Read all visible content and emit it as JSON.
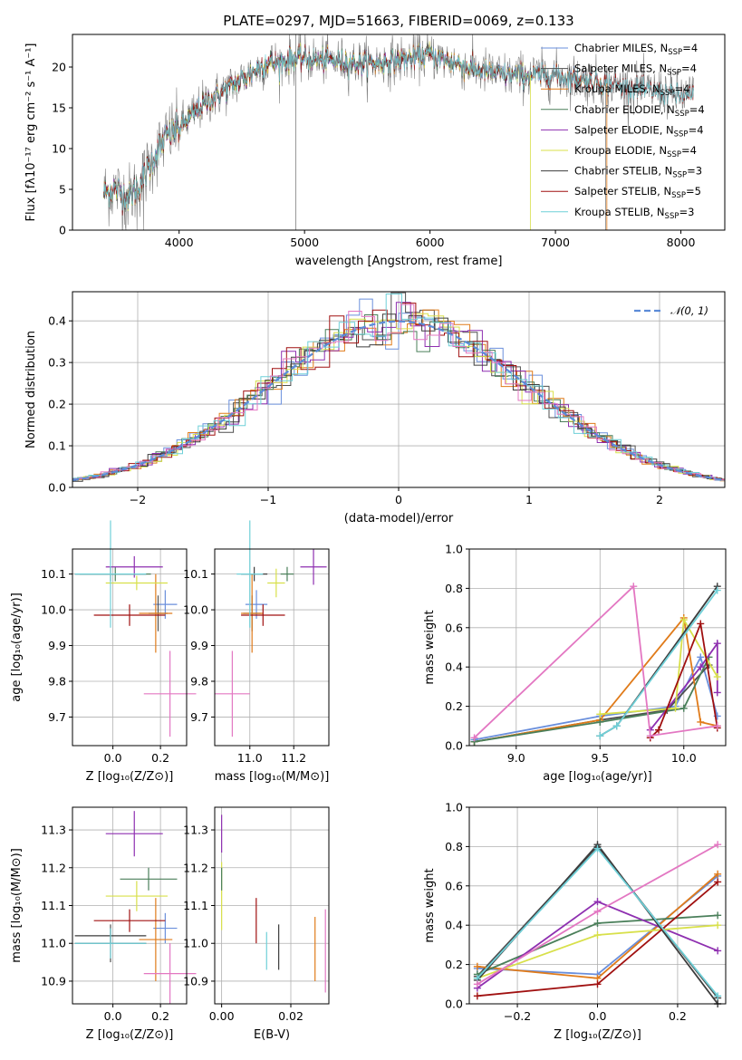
{
  "colors": {
    "Chabrier MILES": "#6a8fdc",
    "Salpeter MILES": "#4f4f4f",
    "Kroupa MILES": "#e07b1a",
    "Chabrier ELODIE": "#4a7f5a",
    "Salpeter ELODIE": "#8e2fb0",
    "Kroupa ELODIE": "#d8e04a",
    "Chabrier STELIB": "#3c3c3c",
    "Salpeter STELIB": "#a01010",
    "Kroupa STELIB": "#6fd0d8",
    "extra": "#e377c2",
    "spectrum": "#808080",
    "normal": "#5b8bd8"
  },
  "chart_data": [
    {
      "id": "spectrum",
      "type": "line",
      "title": "PLATE=0297, MJD=51663, FIBERID=0069, z=0.133",
      "xlabel": "wavelength [Angstrom, rest frame]",
      "ylabel": "Flux [fλ10⁻¹⁷ erg cm⁻² s⁻¹ A⁻¹]",
      "xlim": [
        3150,
        8350
      ],
      "ylim": [
        0,
        24
      ],
      "xticks": [
        "4000",
        "5000",
        "6000",
        "7000",
        "8000"
      ],
      "yticks": [
        "0",
        "5",
        "10",
        "15",
        "20"
      ],
      "continuum": {
        "x": [
          3400,
          3500,
          3600,
          3700,
          3800,
          3900,
          4000,
          4100,
          4200,
          4300,
          4400,
          4500,
          4600,
          4700,
          4800,
          4900,
          5000,
          5200,
          5400,
          5600,
          5800,
          6000,
          6200,
          6400,
          6600,
          6800,
          7000,
          7200,
          7400,
          7600,
          7800,
          8000,
          8100
        ],
        "y": [
          4.6,
          5.0,
          4.0,
          6.0,
          9.0,
          11.5,
          12.5,
          14.0,
          15.5,
          16.5,
          17.5,
          18.5,
          19.5,
          20.5,
          20.5,
          21.0,
          21.0,
          20.8,
          20.5,
          20.5,
          21.0,
          21.5,
          20.5,
          19.5,
          19.0,
          19.0,
          19.0,
          18.5,
          18.0,
          17.5,
          17.0,
          16.5,
          16.5
        ]
      },
      "series_names": [
        "Chabrier MILES",
        "Salpeter MILES",
        "Kroupa MILES",
        "Chabrier ELODIE",
        "Salpeter ELODIE",
        "Kroupa ELODIE",
        "Chabrier STELIB",
        "Salpeter STELIB",
        "Kroupa STELIB"
      ],
      "legend_labels": [
        {
          "name": "Chabrier MILES",
          "n": "4"
        },
        {
          "name": "Salpeter MILES",
          "n": "4"
        },
        {
          "name": "Kroupa MILES",
          "n": "4"
        },
        {
          "name": "Chabrier ELODIE",
          "n": "4"
        },
        {
          "name": "Salpeter ELODIE",
          "n": "4"
        },
        {
          "name": "Kroupa ELODIE",
          "n": "4"
        },
        {
          "name": "Chabrier STELIB",
          "n": "3"
        },
        {
          "name": "Salpeter STELIB",
          "n": "5"
        },
        {
          "name": "Kroupa STELIB",
          "n": "3"
        }
      ],
      "legend_loc": "upper right"
    },
    {
      "id": "residuals",
      "type": "histogram",
      "xlabel": "(data-model)/error",
      "ylabel": "Normed distribution",
      "xlim": [
        -2.5,
        2.5
      ],
      "ylim": [
        0,
        0.47
      ],
      "xticks": [
        "−2",
        "−1",
        "0",
        "1",
        "2"
      ],
      "yticks": [
        "0.0",
        "0.1",
        "0.2",
        "0.3",
        "0.4"
      ],
      "legend": "𝒩(0, 1)",
      "legend_loc": "upper right",
      "grid": true
    },
    {
      "id": "age_vs_Z",
      "type": "errorbar",
      "xlabel": "Z [log₁₀(Z/Z⊙)]",
      "ylabel": "age  [log₁₀(age/yr)]",
      "xlim": [
        -0.17,
        0.31
      ],
      "ylim": [
        9.62,
        10.17
      ],
      "xticks": [
        "0.0",
        "0.2"
      ],
      "yticks": [
        "9.7",
        "9.8",
        "9.9",
        "10.0",
        "10.1"
      ],
      "grid": true,
      "points": [
        {
          "s": "Chabrier MILES",
          "x": 0.22,
          "y": 10.015,
          "ex": 0.05,
          "ey": 0.04
        },
        {
          "s": "Salpeter MILES",
          "x": 0.19,
          "y": 9.99,
          "ex": 0.04,
          "ey": 0.05
        },
        {
          "s": "Kroupa MILES",
          "x": 0.18,
          "y": 9.99,
          "ex": 0.07,
          "ey": 0.11
        },
        {
          "s": "Chabrier ELODIE",
          "x": 0.01,
          "y": 10.1,
          "ex": 0.15,
          "ey": 0.02
        },
        {
          "s": "Salpeter ELODIE",
          "x": 0.09,
          "y": 10.12,
          "ex": 0.12,
          "ey": 0.03
        },
        {
          "s": "Kroupa ELODIE",
          "x": 0.1,
          "y": 10.075,
          "ex": 0.13,
          "ey": 0.02
        },
        {
          "s": "Chabrier STELIB",
          "x": -0.01,
          "y": 10.1,
          "ex": 0.15,
          "ey": 0.02
        },
        {
          "s": "Salpeter STELIB",
          "x": 0.07,
          "y": 9.985,
          "ex": 0.15,
          "ey": 0.03
        },
        {
          "s": "Kroupa STELIB",
          "x": -0.01,
          "y": 10.1,
          "ex": 0.15,
          "ey": 0.15
        },
        {
          "s": "extra",
          "x": 0.24,
          "y": 9.765,
          "ex": 0.11,
          "ey": 0.12
        }
      ]
    },
    {
      "id": "age_vs_mass",
      "type": "errorbar",
      "xlabel": "mass [log₁₀(M/M⊙)]",
      "ylabel": "",
      "xlim": [
        10.84,
        11.36
      ],
      "ylim": [
        9.62,
        10.17
      ],
      "xticks": [
        "11.0",
        "11.2"
      ],
      "yticks": [
        "9.7",
        "9.8",
        "9.9",
        "10.0",
        "10.1"
      ],
      "grid": true,
      "points": [
        {
          "s": "Chabrier MILES",
          "x": 11.03,
          "y": 10.015,
          "ex": 0.05,
          "ey": 0.04
        },
        {
          "s": "Salpeter MILES",
          "x": 11.01,
          "y": 9.99,
          "ex": 0.04,
          "ey": 0.05
        },
        {
          "s": "Kroupa MILES",
          "x": 11.01,
          "y": 9.99,
          "ex": 0.05,
          "ey": 0.11
        },
        {
          "s": "Chabrier ELODIE",
          "x": 11.17,
          "y": 10.1,
          "ex": 0.03,
          "ey": 0.02
        },
        {
          "s": "Salpeter ELODIE",
          "x": 11.29,
          "y": 10.12,
          "ex": 0.06,
          "ey": 0.05
        },
        {
          "s": "Kroupa ELODIE",
          "x": 11.12,
          "y": 10.075,
          "ex": 0.04,
          "ey": 0.04
        },
        {
          "s": "Chabrier STELIB",
          "x": 11.02,
          "y": 10.1,
          "ex": 0.06,
          "ey": 0.02
        },
        {
          "s": "Salpeter STELIB",
          "x": 11.06,
          "y": 9.985,
          "ex": 0.1,
          "ey": 0.03
        },
        {
          "s": "Kroupa STELIB",
          "x": 11.0,
          "y": 10.1,
          "ex": 0.06,
          "ey": 0.15
        },
        {
          "s": "extra",
          "x": 10.92,
          "y": 9.765,
          "ex": 0.08,
          "ey": 0.12
        }
      ]
    },
    {
      "id": "weight_vs_age",
      "type": "line",
      "xlabel": "age  [log₁₀(age/yr)]",
      "ylabel": "mass weight",
      "xlim": [
        8.72,
        10.25
      ],
      "ylim": [
        0,
        1.0
      ],
      "xticks": [
        "9.0",
        "9.5",
        "10.0"
      ],
      "yticks": [
        "0.0",
        "0.2",
        "0.4",
        "0.6",
        "0.8",
        "1.0"
      ],
      "grid": true,
      "series": [
        {
          "s": "Chabrier MILES",
          "x": [
            8.75,
            9.5,
            9.95,
            10.1,
            10.2
          ],
          "y": [
            0.03,
            0.15,
            0.2,
            0.45,
            0.15
          ]
        },
        {
          "s": "Salpeter MILES",
          "x": [
            8.75,
            9.5,
            9.9,
            10.15
          ],
          "y": [
            0.02,
            0.13,
            0.18,
            0.41
          ]
        },
        {
          "s": "Kroupa MILES",
          "x": [
            8.75,
            9.5,
            10.0,
            10.1,
            10.2
          ],
          "y": [
            0.02,
            0.13,
            0.65,
            0.12,
            0.1
          ]
        },
        {
          "s": "Chabrier ELODIE",
          "x": [
            8.75,
            9.5,
            10.0,
            10.15
          ],
          "y": [
            0.02,
            0.12,
            0.19,
            0.45
          ]
        },
        {
          "s": "Salpeter ELODIE",
          "x": [
            9.8,
            10.1,
            10.2,
            10.2
          ],
          "y": [
            0.08,
            0.4,
            0.52,
            0.27
          ]
        },
        {
          "s": "Kroupa ELODIE",
          "x": [
            9.5,
            9.95,
            10.0,
            10.2
          ],
          "y": [
            0.16,
            0.19,
            0.64,
            0.35
          ]
        },
        {
          "s": "Chabrier STELIB",
          "x": [
            9.5,
            9.6,
            10.2
          ],
          "y": [
            0.05,
            0.1,
            0.81
          ]
        },
        {
          "s": "Salpeter STELIB",
          "x": [
            9.8,
            9.85,
            10.1,
            10.2
          ],
          "y": [
            0.04,
            0.08,
            0.62,
            0.09
          ]
        },
        {
          "s": "Kroupa STELIB",
          "x": [
            9.5,
            9.6,
            10.2
          ],
          "y": [
            0.05,
            0.1,
            0.79
          ]
        },
        {
          "s": "extra",
          "x": [
            8.75,
            9.7,
            9.8,
            10.2
          ],
          "y": [
            0.04,
            0.81,
            0.05,
            0.1
          ]
        }
      ]
    },
    {
      "id": "mass_vs_Z",
      "type": "errorbar",
      "xlabel": "Z [log₁₀(Z/Z⊙)]",
      "ylabel": "mass [log₁₀(M/M⊙)]",
      "xlim": [
        -0.17,
        0.31
      ],
      "ylim": [
        10.84,
        11.36
      ],
      "xticks": [
        "0.0",
        "0.2"
      ],
      "yticks": [
        "10.9",
        "11.0",
        "11.1",
        "11.2",
        "11.3"
      ],
      "grid": true,
      "points": [
        {
          "s": "Chabrier MILES",
          "x": 0.22,
          "y": 11.04,
          "ex": 0.05,
          "ey": 0.04
        },
        {
          "s": "Salpeter MILES",
          "x": -0.01,
          "y": 11.0,
          "ex": 0.15,
          "ey": 0.05
        },
        {
          "s": "Kroupa MILES",
          "x": 0.18,
          "y": 11.01,
          "ex": 0.07,
          "ey": 0.11
        },
        {
          "s": "Chabrier ELODIE",
          "x": 0.15,
          "y": 11.17,
          "ex": 0.12,
          "ey": 0.03
        },
        {
          "s": "Salpeter ELODIE",
          "x": 0.09,
          "y": 11.29,
          "ex": 0.12,
          "ey": 0.06
        },
        {
          "s": "Kroupa ELODIE",
          "x": 0.1,
          "y": 11.125,
          "ex": 0.13,
          "ey": 0.04
        },
        {
          "s": "Chabrier STELIB",
          "x": -0.01,
          "y": 11.02,
          "ex": 0.15,
          "ey": 0.02
        },
        {
          "s": "Salpeter STELIB",
          "x": 0.07,
          "y": 11.06,
          "ex": 0.15,
          "ey": 0.03
        },
        {
          "s": "Kroupa STELIB",
          "x": -0.01,
          "y": 11.0,
          "ex": 0.15,
          "ey": 0.04
        },
        {
          "s": "extra",
          "x": 0.24,
          "y": 10.92,
          "ex": 0.11,
          "ey": 0.08
        }
      ]
    },
    {
      "id": "mass_vs_ebv",
      "type": "errorbar",
      "xlabel": "E(B-V)",
      "ylabel": "",
      "xlim": [
        -0.002,
        0.031
      ],
      "ylim": [
        10.84,
        11.36
      ],
      "xticks": [
        "0.00",
        "0.02"
      ],
      "yticks": [
        "10.9",
        "11.0",
        "11.1",
        "11.2",
        "11.3"
      ],
      "grid": true,
      "points": [
        {
          "s": "Salpeter ELODIE",
          "x": 0.0,
          "y": 11.29,
          "ex": 0,
          "ey": 0.05
        },
        {
          "s": "Kroupa ELODIE",
          "x": 0.0,
          "y": 11.125,
          "ex": 0,
          "ey": 0.09
        },
        {
          "s": "Chabrier ELODIE",
          "x": 0.0,
          "y": 11.17,
          "ex": 0,
          "ey": 0.03
        },
        {
          "s": "Salpeter STELIB",
          "x": 0.01,
          "y": 11.06,
          "ex": 0,
          "ey": 0.06
        },
        {
          "s": "Kroupa STELIB",
          "x": 0.013,
          "y": 10.98,
          "ex": 0,
          "ey": 0.05
        },
        {
          "s": "Chabrier STELIB",
          "x": 0.0165,
          "y": 10.99,
          "ex": 0,
          "ey": 0.06
        },
        {
          "s": "Kroupa MILES",
          "x": 0.027,
          "y": 10.985,
          "ex": 0,
          "ey": 0.085
        },
        {
          "s": "extra",
          "x": 0.03,
          "y": 10.98,
          "ex": 0,
          "ey": 0.11
        }
      ]
    },
    {
      "id": "weight_vs_Z",
      "type": "line",
      "xlabel": "Z [log₁₀(Z/Z⊙)]",
      "ylabel": "mass weight",
      "xlim": [
        -0.32,
        0.32
      ],
      "ylim": [
        0,
        1.0
      ],
      "xticks": [
        "−0.2",
        "0.0",
        "0.2"
      ],
      "yticks": [
        "0.0",
        "0.2",
        "0.4",
        "0.6",
        "0.8",
        "1.0"
      ],
      "grid": true,
      "series": [
        {
          "s": "Chabrier MILES",
          "x": [
            -0.3,
            0.0,
            0.3
          ],
          "y": [
            0.18,
            0.15,
            0.65
          ]
        },
        {
          "s": "Salpeter MILES",
          "x": [
            -0.3,
            0.0,
            0.3
          ],
          "y": [
            0.14,
            0.8,
            0.03
          ]
        },
        {
          "s": "Kroupa MILES",
          "x": [
            -0.3,
            0.0,
            0.3
          ],
          "y": [
            0.19,
            0.13,
            0.66
          ]
        },
        {
          "s": "Chabrier ELODIE",
          "x": [
            -0.3,
            0.0,
            0.3
          ],
          "y": [
            0.15,
            0.41,
            0.45
          ]
        },
        {
          "s": "Salpeter ELODIE",
          "x": [
            -0.3,
            0.0,
            0.3
          ],
          "y": [
            0.08,
            0.52,
            0.27
          ]
        },
        {
          "s": "Kroupa ELODIE",
          "x": [
            -0.3,
            0.0,
            0.3
          ],
          "y": [
            0.13,
            0.35,
            0.4
          ]
        },
        {
          "s": "Chabrier STELIB",
          "x": [
            -0.3,
            0.0,
            0.3
          ],
          "y": [
            0.12,
            0.81,
            0.0
          ]
        },
        {
          "s": "Salpeter STELIB",
          "x": [
            -0.3,
            0.0,
            0.3
          ],
          "y": [
            0.04,
            0.1,
            0.62
          ]
        },
        {
          "s": "Kroupa STELIB",
          "x": [
            -0.3,
            0.0,
            0.3
          ],
          "y": [
            0.13,
            0.79,
            0.04
          ]
        },
        {
          "s": "extra",
          "x": [
            -0.3,
            0.0,
            0.3
          ],
          "y": [
            0.1,
            0.47,
            0.81
          ]
        }
      ]
    }
  ]
}
